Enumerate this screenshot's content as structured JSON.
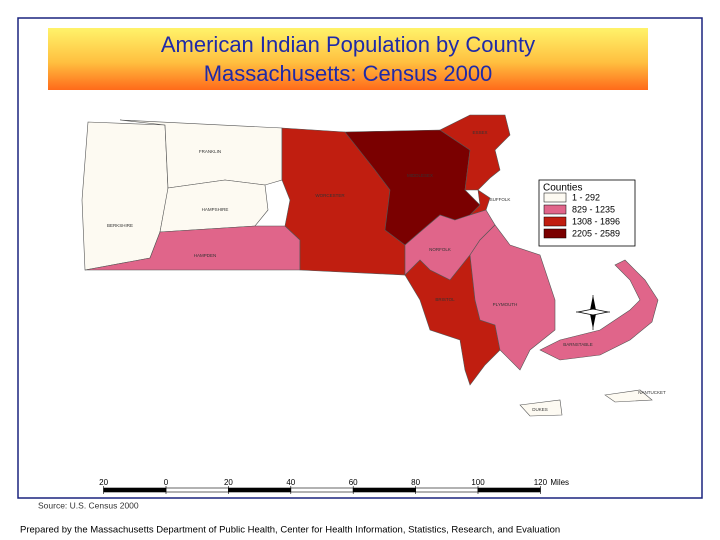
{
  "header": {
    "title_line1": "American Indian Population by County",
    "title_line2": "Massachusetts: Census 2000"
  },
  "legend": {
    "title": "Counties",
    "entries": [
      {
        "label": "1 - 292",
        "color": "#fdfaf2"
      },
      {
        "label": "829 - 1235",
        "color": "#e0658a"
      },
      {
        "label": "1308 - 1896",
        "color": "#c01e10"
      },
      {
        "label": "2205 - 2589",
        "color": "#7a0000"
      }
    ]
  },
  "counties": [
    {
      "label": "BERKSHIRE",
      "color": "#fdfaf2"
    },
    {
      "label": "FRANKLIN",
      "color": "#fdfaf2"
    },
    {
      "label": "HAMPSHIRE",
      "color": "#fdfaf2"
    },
    {
      "label": "HAMPDEN",
      "color": "#e0658a"
    },
    {
      "label": "WORCESTER",
      "color": "#c01e10"
    },
    {
      "label": "MIDDLESEX",
      "color": "#7a0000"
    },
    {
      "label": "ESSEX",
      "color": "#c01e10"
    },
    {
      "label": "SUFFOLK",
      "color": "#c01e10"
    },
    {
      "label": "NORFOLK",
      "color": "#e0658a"
    },
    {
      "label": "BRISTOL",
      "color": "#c01e10"
    },
    {
      "label": "PLYMOUTH",
      "color": "#e0658a"
    },
    {
      "label": "BARNSTABLE",
      "color": "#e0658a"
    },
    {
      "label": "DUKES",
      "color": "#fdfaf2"
    },
    {
      "label": "NANTUCKET",
      "color": "#fdfaf2"
    }
  ],
  "scale_bar": {
    "ticks": [
      {
        "value": -20,
        "label": "20"
      },
      0,
      20,
      40,
      60,
      80,
      100,
      120
    ],
    "unit": "Miles"
  },
  "source": "Source: U.S. Census 2000",
  "footer": "Prepared by the Massachusetts Department of Public Health, Center for Health Information, Statistics, Research, and Evaluation"
}
